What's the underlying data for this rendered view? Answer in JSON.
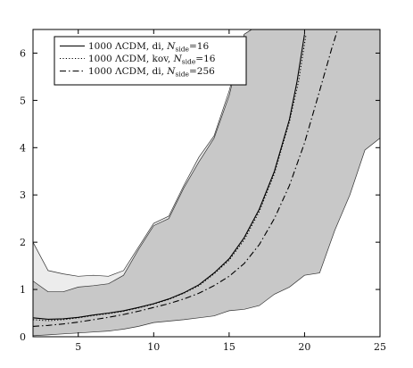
{
  "chart_data": {
    "type": "line",
    "title": "",
    "xlabel": "",
    "ylabel": "",
    "xlim": [
      2,
      25
    ],
    "ylim": [
      0,
      6.5
    ],
    "xticks": [
      5,
      10,
      15,
      20,
      25
    ],
    "yticks": [
      0,
      1,
      2,
      3,
      4,
      5,
      6
    ],
    "grid": false,
    "legend_position": "top-left",
    "bands": [
      {
        "fill": "#ececec",
        "x": [
          2,
          3,
          4,
          5,
          6,
          7,
          8,
          9,
          10,
          11,
          12,
          13,
          14,
          15,
          16,
          17,
          18,
          19,
          20,
          21,
          22,
          23,
          24,
          25
        ],
        "upper": [
          2.0,
          1.4,
          1.33,
          1.28,
          1.3,
          1.28,
          1.4,
          1.9,
          2.4,
          2.55,
          3.2,
          3.8,
          4.25,
          5.2,
          6.4,
          6.6,
          6.6,
          6.6,
          6.6,
          6.6,
          6.6,
          6.6,
          6.6,
          6.6
        ],
        "lower": [
          0.05,
          0.05,
          0.08,
          0.1,
          0.12,
          0.14,
          0.18,
          0.24,
          0.32,
          0.35,
          0.38,
          0.42,
          0.46,
          0.6,
          0.62,
          0.7,
          0.95,
          1.1,
          1.35,
          1.42,
          2.35,
          3.1,
          4.1,
          4.4
        ]
      },
      {
        "fill": "#c8c8c8",
        "x": [
          2,
          3,
          4,
          5,
          6,
          7,
          8,
          9,
          10,
          11,
          12,
          13,
          14,
          15,
          16,
          17,
          18,
          19,
          20,
          21,
          22,
          23,
          24,
          25
        ],
        "upper": [
          1.18,
          0.95,
          0.95,
          1.05,
          1.08,
          1.12,
          1.3,
          1.85,
          2.35,
          2.5,
          3.15,
          3.7,
          4.2,
          5.1,
          6.4,
          6.6,
          6.6,
          6.6,
          6.6,
          6.6,
          6.6,
          6.6,
          6.6,
          6.6
        ],
        "lower": [
          0.02,
          0.04,
          0.06,
          0.08,
          0.1,
          0.12,
          0.16,
          0.22,
          0.3,
          0.33,
          0.36,
          0.4,
          0.44,
          0.55,
          0.58,
          0.66,
          0.9,
          1.05,
          1.3,
          1.35,
          2.25,
          3.0,
          3.95,
          4.2
        ]
      }
    ],
    "series": [
      {
        "name": "1000 ΛCDM, di,   N_side=16",
        "style": "solid",
        "x": [
          2,
          3,
          4,
          5,
          6,
          7,
          8,
          9,
          10,
          11,
          12,
          13,
          14,
          15,
          16,
          17,
          18,
          19,
          19.5,
          20
        ],
        "y": [
          0.4,
          0.37,
          0.38,
          0.41,
          0.46,
          0.5,
          0.55,
          0.62,
          0.7,
          0.8,
          0.93,
          1.1,
          1.35,
          1.65,
          2.1,
          2.7,
          3.5,
          4.6,
          5.4,
          6.4
        ]
      },
      {
        "name": "1000 ΛCDM, kov, N_side=16",
        "style": "dotted",
        "x": [
          2,
          3,
          4,
          5,
          6,
          7,
          8,
          9,
          10,
          11,
          12,
          13,
          14,
          15,
          16,
          17,
          18,
          19,
          19.6,
          20.1
        ],
        "y": [
          0.36,
          0.34,
          0.36,
          0.4,
          0.45,
          0.49,
          0.54,
          0.61,
          0.69,
          0.79,
          0.92,
          1.08,
          1.33,
          1.62,
          2.05,
          2.65,
          3.45,
          4.55,
          5.4,
          6.4
        ]
      },
      {
        "name": "1000 ΛCDM, di,   N_side=256",
        "style": "dashdot",
        "x": [
          2,
          3,
          4,
          5,
          6,
          7,
          8,
          9,
          10,
          11,
          12,
          13,
          14,
          15,
          16,
          17,
          18,
          19,
          20,
          21,
          21.8,
          22.2
        ],
        "y": [
          0.22,
          0.24,
          0.27,
          0.31,
          0.36,
          0.41,
          0.47,
          0.54,
          0.62,
          0.7,
          0.8,
          0.92,
          1.08,
          1.28,
          1.55,
          1.95,
          2.5,
          3.2,
          4.1,
          5.2,
          6.1,
          6.5
        ]
      }
    ],
    "legend": [
      {
        "prefix": "1000 ΛCDM, di,",
        "symbol": "N",
        "subscript": "side",
        "suffix": "=16"
      },
      {
        "prefix": "1000 ΛCDM, kov,",
        "symbol": "N",
        "subscript": "side",
        "suffix": "=16"
      },
      {
        "prefix": "1000 ΛCDM, di,",
        "symbol": "N",
        "subscript": "side",
        "suffix": "=256"
      }
    ]
  }
}
